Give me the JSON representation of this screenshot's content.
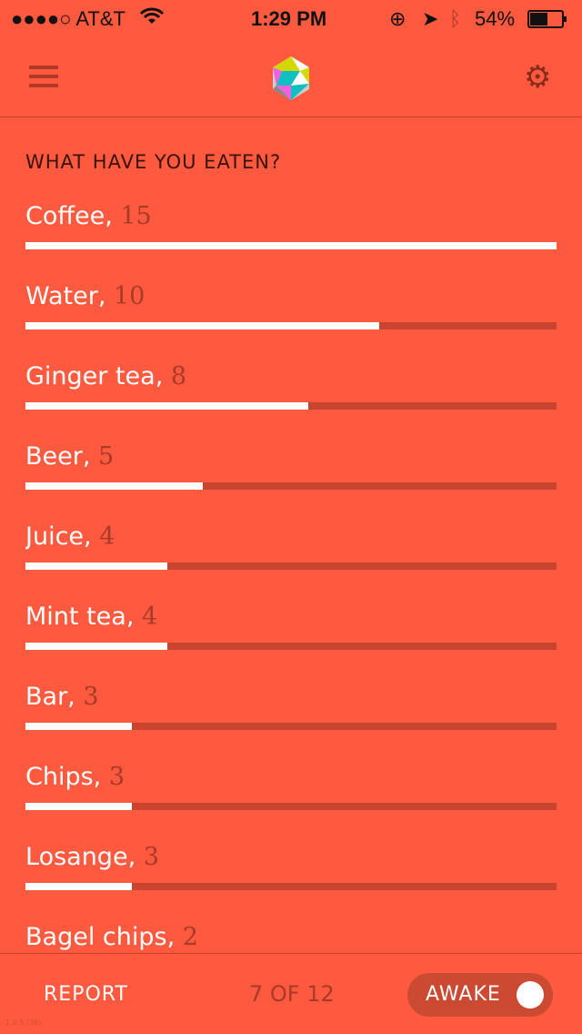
{
  "status": {
    "carrier": "●●●●○ AT&T",
    "time": "1:29 PM",
    "battery": "54%",
    "battery_level": 0.54
  },
  "nav": {
    "menu_icon": "list-icon",
    "settings_icon": "gear-icon"
  },
  "heading": "WHAT HAVE YOU EATEN?",
  "items": [
    {
      "name": "Coffee",
      "count": "15",
      "value": 15
    },
    {
      "name": "Water",
      "count": "10",
      "value": 10
    },
    {
      "name": "Ginger tea",
      "count": "8",
      "value": 8
    },
    {
      "name": "Beer",
      "count": "5",
      "value": 5
    },
    {
      "name": "Juice",
      "count": "4",
      "value": 4
    },
    {
      "name": "Mint tea",
      "count": "4",
      "value": 4
    },
    {
      "name": "Bar",
      "count": "3",
      "value": 3
    },
    {
      "name": "Chips",
      "count": "3",
      "value": 3
    },
    {
      "name": "Losange",
      "count": "3",
      "value": 3
    },
    {
      "name": "Bagel chips",
      "count": "2",
      "value": 2
    }
  ],
  "max_value": 15,
  "footer": {
    "report": "REPORT",
    "pager": "7 OF 12",
    "awake": "AWAKE",
    "awake_on": true,
    "version": "1.0.5 (36)"
  },
  "colors": {
    "background": "#ff5a40",
    "track": "#c8442e",
    "fill": "#ffffff"
  }
}
